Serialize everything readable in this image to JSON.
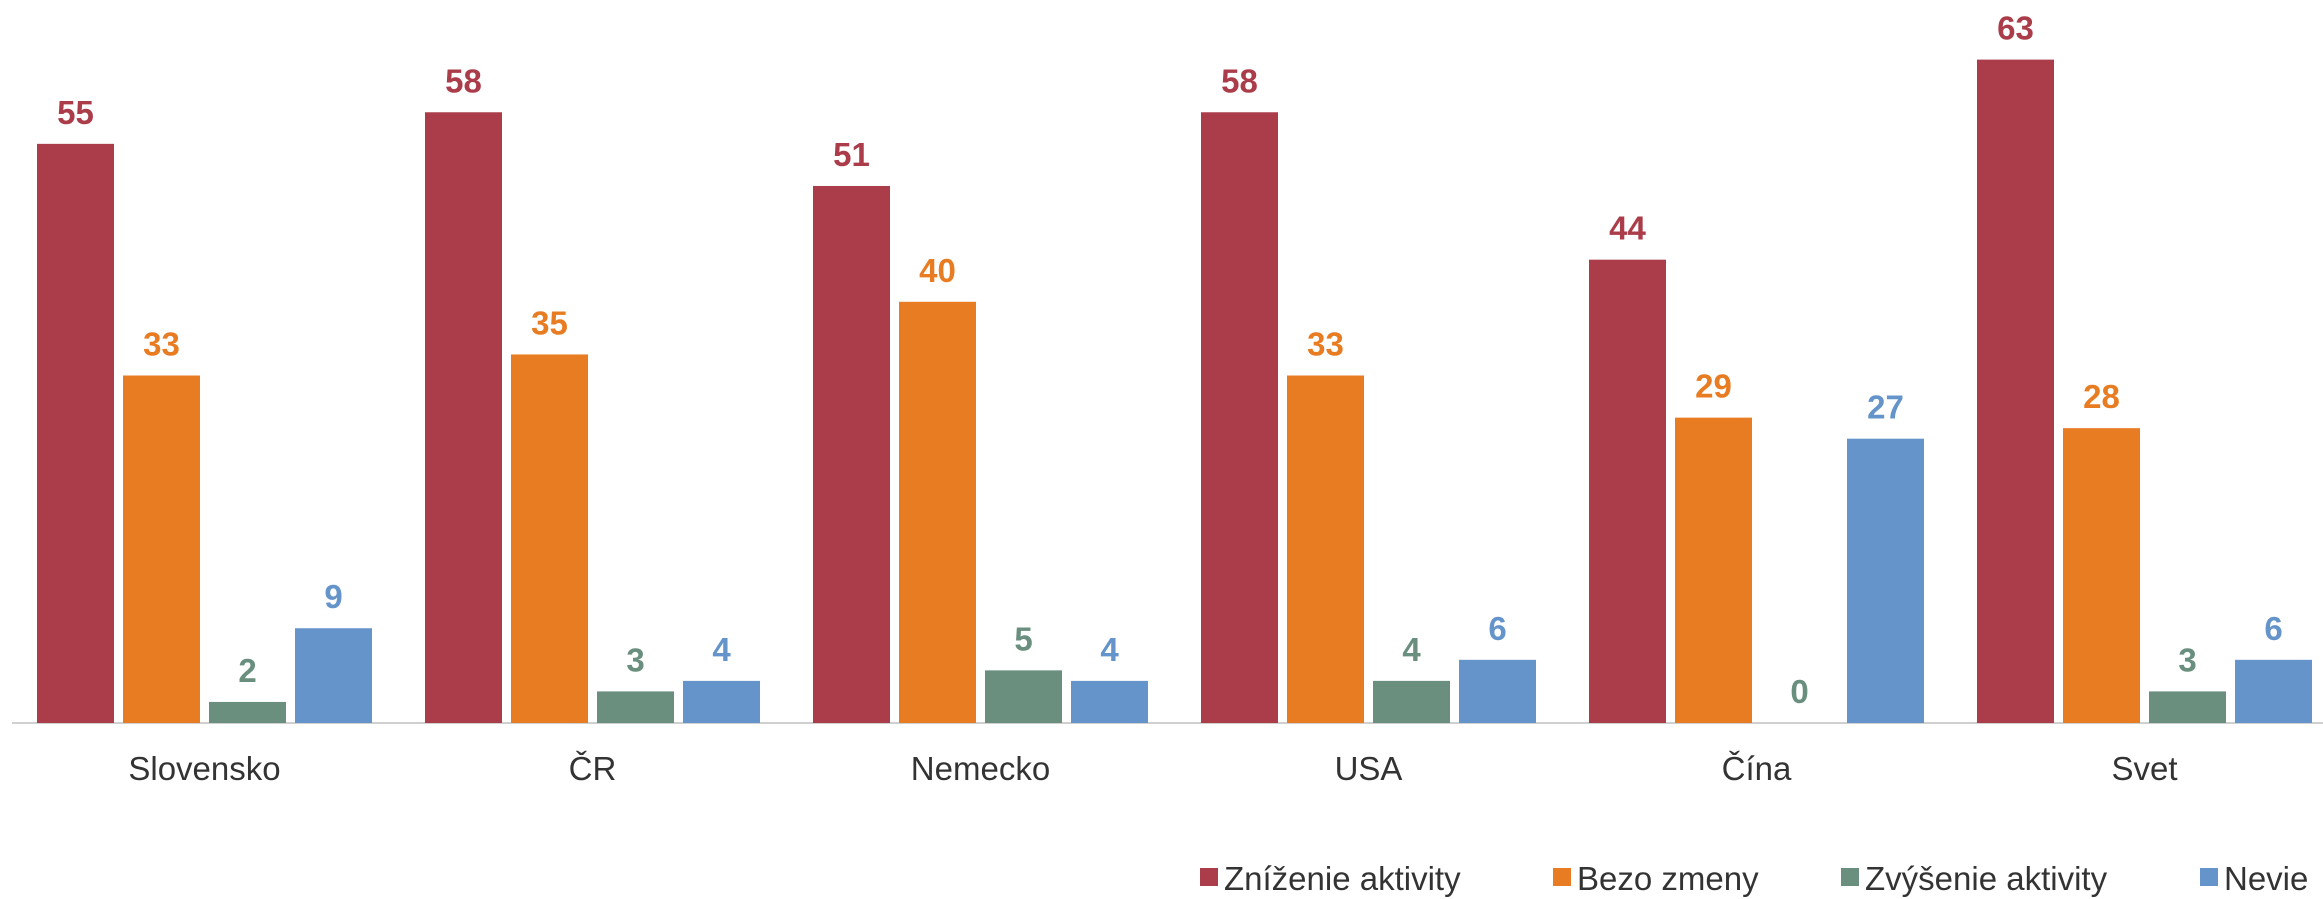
{
  "chart_data": {
    "type": "bar",
    "categories": [
      "Slovensko",
      "ČR",
      "Nemecko",
      "USA",
      "Čína",
      "Svet"
    ],
    "series": [
      {
        "name": "Zníženie aktivity",
        "color": "#ab3d4a",
        "values": [
          55,
          58,
          51,
          58,
          44,
          63
        ]
      },
      {
        "name": "Bezo zmeny",
        "color": "#e87c22",
        "values": [
          33,
          35,
          40,
          33,
          29,
          28
        ]
      },
      {
        "name": "Zvýšenie aktivity",
        "color": "#6a8f7e",
        "values": [
          2,
          3,
          5,
          4,
          0,
          3
        ]
      },
      {
        "name": "Nevie",
        "color": "#6494c9",
        "values": [
          9,
          4,
          4,
          6,
          27,
          6
        ]
      }
    ],
    "legend": "bottom-right"
  }
}
